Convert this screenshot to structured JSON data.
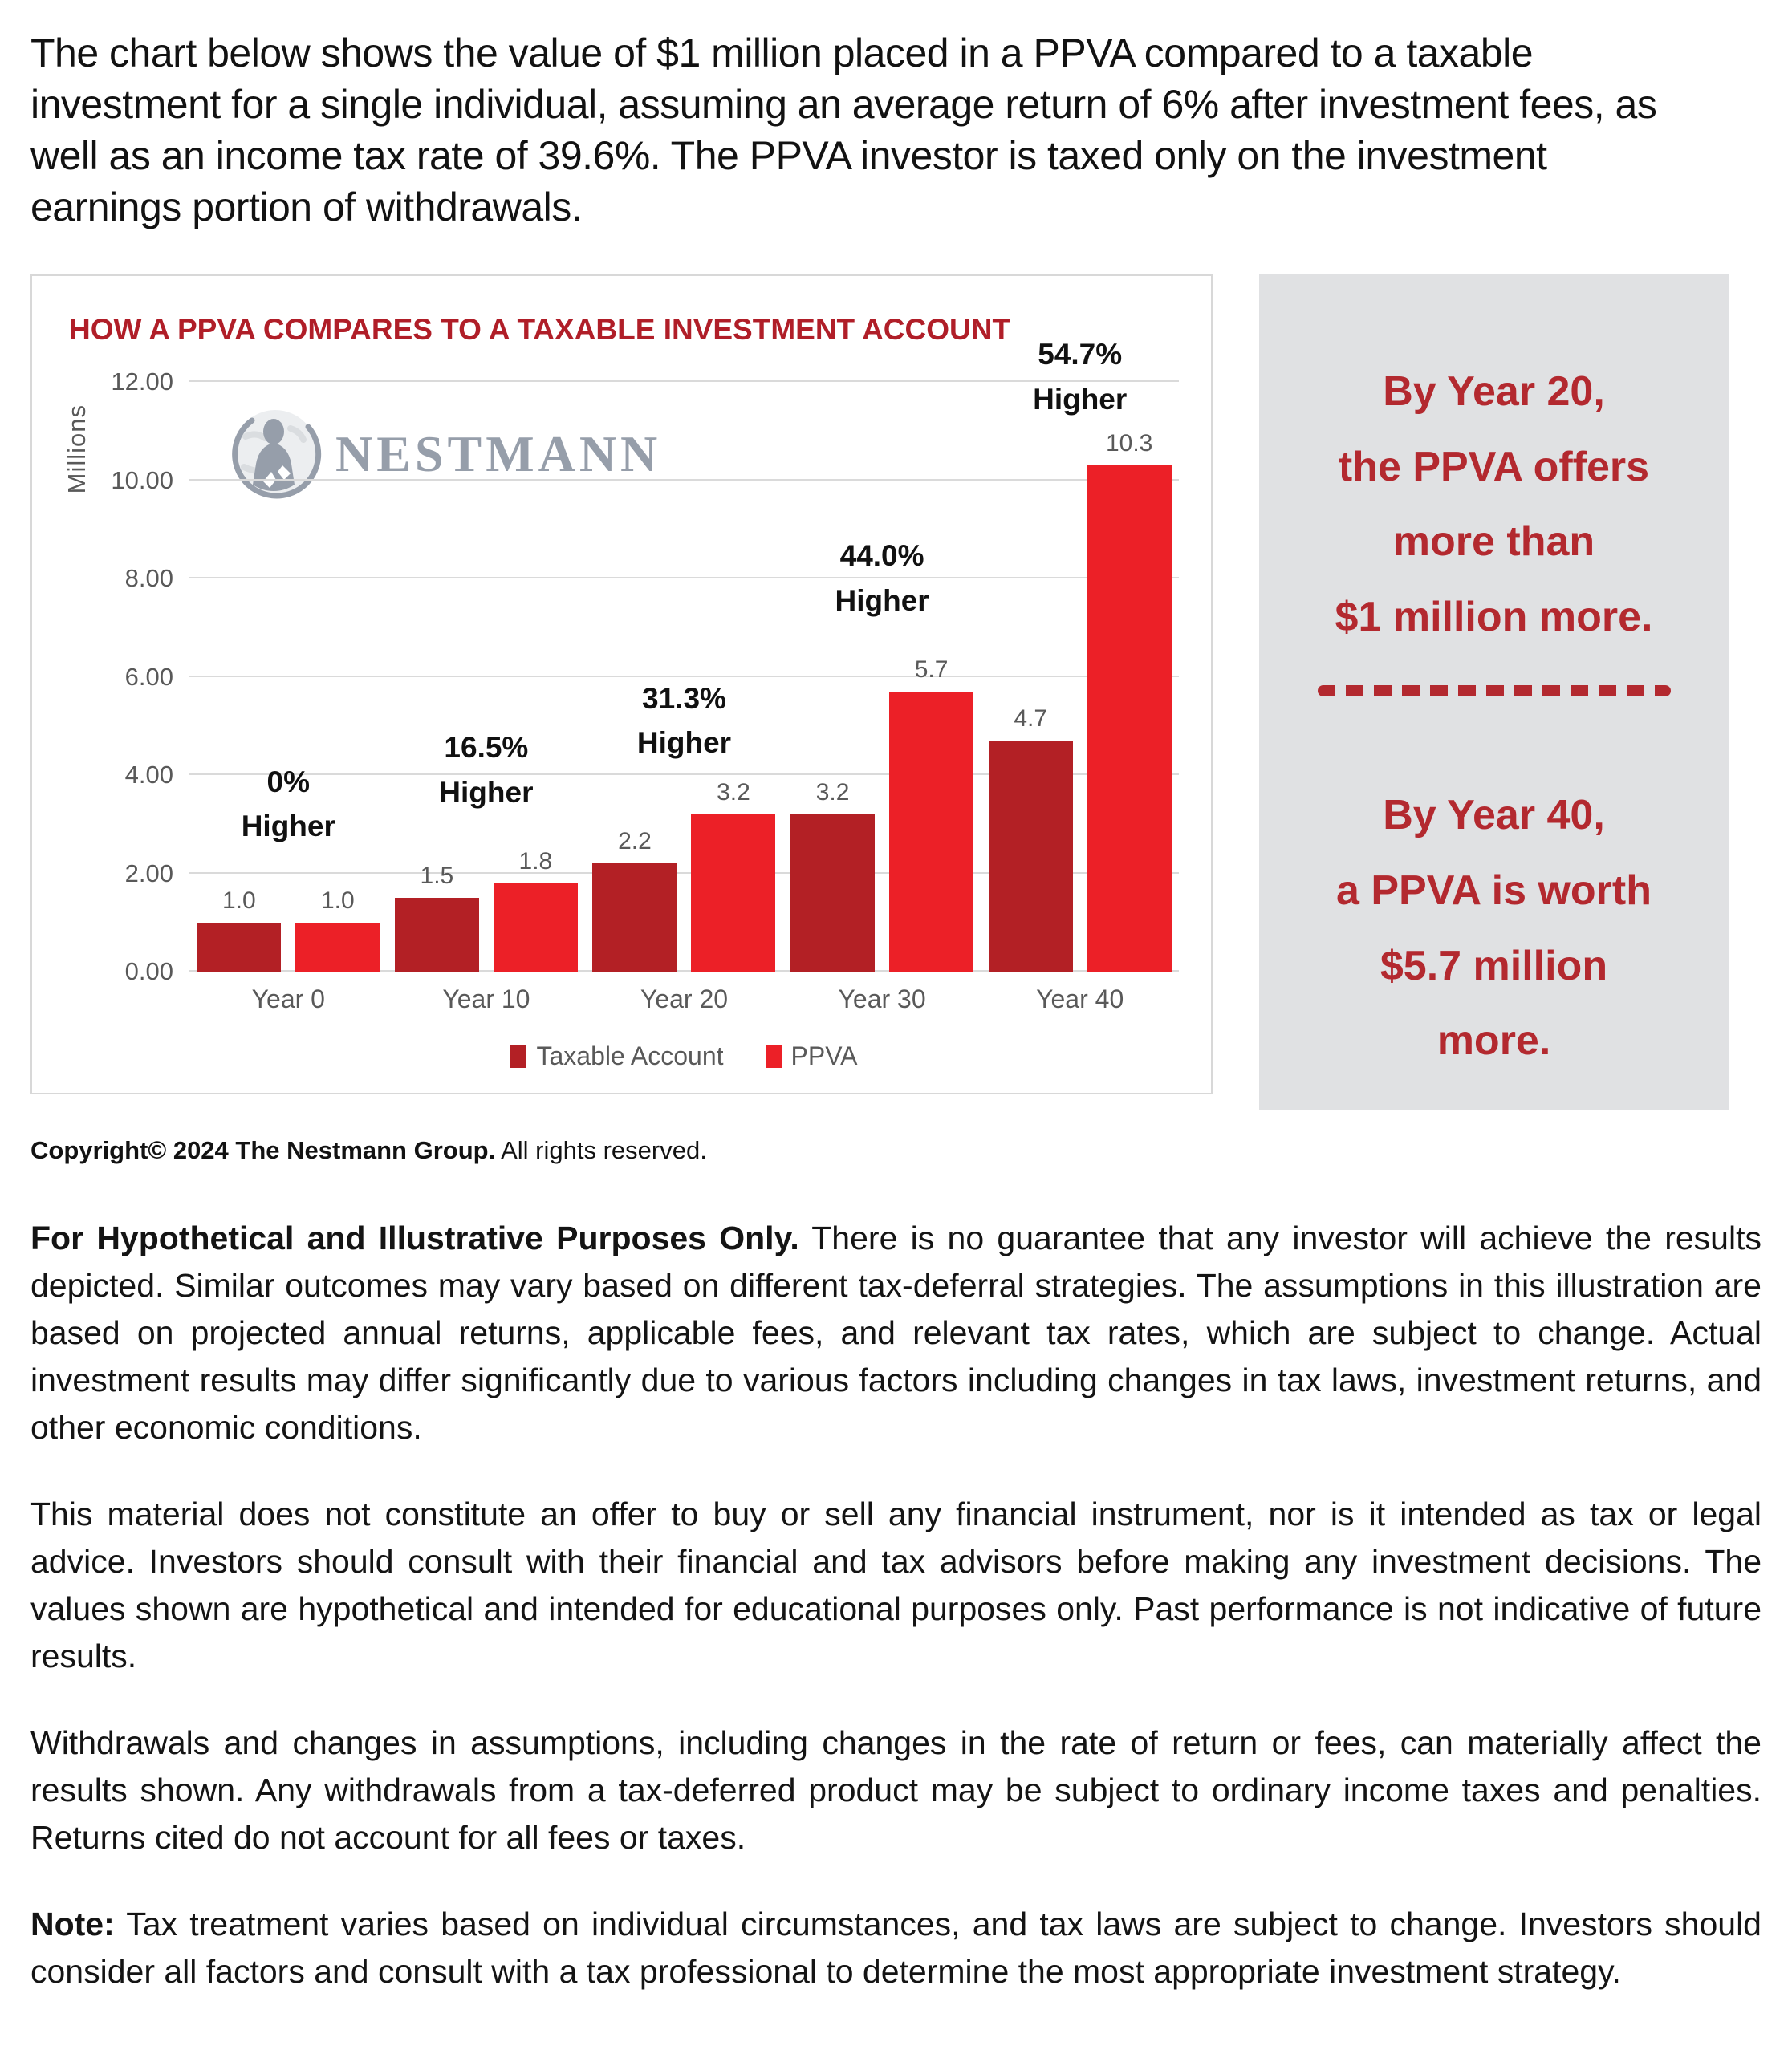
{
  "intro": "The chart below shows the value of $1 million placed in a PPVA compared to a taxable investment for a single individual, assuming an average return of 6% after investment fees, as well as an income tax rate of 39.6%. The PPVA investor is taxed only on the investment earnings portion of withdrawals.",
  "chart": {
    "title": "HOW A PPVA COMPARES TO A TAXABLE INVESTMENT ACCOUNT",
    "title_color": "#b01e28",
    "watermark": "NESTMANN",
    "watermark_icon": "globe-person-icon",
    "ylabel": "Millions"
  },
  "chart_data": {
    "type": "bar",
    "title": "HOW A PPVA COMPARES TO A TAXABLE INVESTMENT ACCOUNT",
    "ylabel": "Millions",
    "ylim": [
      0,
      12
    ],
    "grid": true,
    "gridline_values_m": [
      0,
      2,
      4,
      6,
      8,
      10,
      12
    ],
    "ytick_labels": [
      "0.00",
      "2.00",
      "4.00",
      "6.00",
      "8.00",
      "10.00",
      "12.00"
    ],
    "categories": [
      "Year 0",
      "Year 10",
      "Year 20",
      "Year 30",
      "Year 40"
    ],
    "series": [
      {
        "name": "Taxable Account",
        "color": "#b32025",
        "values": [
          1.0,
          1.5,
          2.2,
          3.2,
          4.7
        ]
      },
      {
        "name": "PPVA",
        "color": "#ec2027",
        "values": [
          1.0,
          1.8,
          3.2,
          5.7,
          10.3
        ]
      }
    ],
    "value_labels": [
      [
        "1.0",
        "1.0"
      ],
      [
        "1.5",
        "1.8"
      ],
      [
        "2.2",
        "3.2"
      ],
      [
        "3.2",
        "5.7"
      ],
      [
        "4.7",
        "10.3"
      ]
    ],
    "annotations": [
      {
        "line1": "0%",
        "line2": "Higher",
        "bottom_m": 2.5
      },
      {
        "line1": "16.5%",
        "line2": "Higher",
        "bottom_m": 3.2
      },
      {
        "line1": "31.3%",
        "line2": "Higher",
        "bottom_m": 4.2
      },
      {
        "line1": "44.0%",
        "line2": "Higher",
        "bottom_m": 7.1
      },
      {
        "line1": "54.7%",
        "line2": "Higher",
        "bottom_m": 11.2
      }
    ],
    "legend_position": "bottom"
  },
  "sidebar": {
    "background": "#e0e1e3",
    "text_color": "#b3292f",
    "top_text": "By Year 20,\nthe PPVA offers\nmore than\n$1 million more.",
    "bottom_text": "By Year 40,\na PPVA is worth\n$5.7 million\nmore."
  },
  "copyright": {
    "lead": "Copyright© 2024 The Nestmann Group.",
    "rest": " All rights reserved."
  },
  "paragraphs": [
    {
      "lead": "For Hypothetical and Illustrative Purposes Only.",
      "rest": " There is no guarantee that any investor will achieve the results depicted. Similar outcomes may vary based on different tax-deferral strategies. The assumptions in this illustration are based on projected annual returns, applicable fees, and relevant tax rates, which are subject to change. Actual investment results may differ significantly due to various factors including changes in tax laws, investment returns, and other economic conditions."
    },
    {
      "lead": "",
      "rest": "This material does not constitute an offer to buy or sell any financial instrument, nor is it intended as tax or legal advice. Investors should consult with their financial and tax advisors before making any investment decisions. The values shown are hypothetical and intended for educational purposes only. Past performance is not indicative of future results."
    },
    {
      "lead": "",
      "rest": "Withdrawals and changes in assumptions, including changes in the rate of return or fees, can materially affect the results shown. Any withdrawals from a tax-deferred product may be subject to ordinary income taxes and penalties. Returns cited do not account for all fees or taxes."
    },
    {
      "lead": "Note:",
      "rest": " Tax treatment varies based on individual circumstances, and tax laws are subject to change. Investors should consider all factors and consult with a tax professional to determine the most appropriate investment strategy."
    }
  ]
}
